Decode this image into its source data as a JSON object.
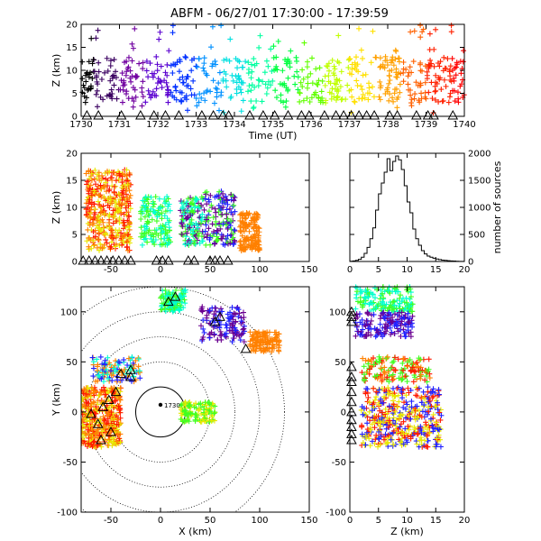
{
  "title": "ABFM - 06/27/01 17:30:00 - 17:39:59",
  "chart_data": [
    {
      "id": "time-height",
      "type": "scatter",
      "xlabel": "Time (UT)",
      "ylabel": "Z (km)",
      "xlim": [
        1730,
        1740
      ],
      "ylim": [
        0,
        20
      ],
      "xticks": [
        "1730",
        "1731",
        "1732",
        "1733",
        "1734",
        "1735",
        "1736",
        "1737",
        "1738",
        "1739",
        "1740"
      ],
      "yticks": [
        "0",
        "5",
        "10",
        "15",
        "20"
      ],
      "color_encoding": "time (rainbow: black to purple to blue to cyan to green to yellow to orange to red)",
      "source_band_z_km": [
        3,
        13
      ],
      "sparse_outliers_z_km": [
        14,
        20
      ],
      "triangle_station_times": [
        1730.15,
        1730.45,
        1731.05,
        1731.55,
        1731.9,
        1732.2,
        1732.55,
        1733.15,
        1733.45,
        1733.7,
        1733.85,
        1734.4,
        1734.75,
        1735.05,
        1735.4,
        1735.75,
        1735.95,
        1736.35,
        1736.65,
        1736.85,
        1737.05,
        1737.25,
        1737.45,
        1737.65,
        1738.05,
        1738.25,
        1738.75,
        1739.05,
        1739.2,
        1739.7
      ]
    },
    {
      "id": "x-z",
      "type": "scatter",
      "xlabel": "",
      "ylabel": "Z (km)",
      "xlim": [
        -80,
        150
      ],
      "ylim": [
        0,
        20
      ],
      "xticks": [
        "-50",
        "0",
        "50",
        "100",
        "150"
      ],
      "yticks": [
        "0",
        "5",
        "10",
        "15",
        "20"
      ],
      "clusters": [
        {
          "x_range": [
            -75,
            -30
          ],
          "z_range": [
            2,
            17
          ],
          "color": "red/orange/yellow"
        },
        {
          "x_range": [
            -20,
            10
          ],
          "z_range": [
            3,
            12
          ],
          "color": "green/cyan"
        },
        {
          "x_range": [
            20,
            45
          ],
          "z_range": [
            3,
            12
          ],
          "color": "cyan/green/purple"
        },
        {
          "x_range": [
            45,
            75
          ],
          "z_range": [
            3,
            13
          ],
          "color": "blue/purple/green"
        },
        {
          "x_range": [
            80,
            100
          ],
          "z_range": [
            2,
            9
          ],
          "color": "orange"
        }
      ]
    },
    {
      "id": "height-histogram",
      "type": "line",
      "xlabel": "",
      "ylabel": "number of sources",
      "xlim": [
        0,
        20
      ],
      "ylim": [
        0,
        2000
      ],
      "xticks": [
        "0",
        "5",
        "10",
        "15",
        "20"
      ],
      "yticks": [
        "0",
        "500",
        "1000",
        "1500",
        "2000"
      ],
      "bin_width_km": 0.5,
      "bins_start_km": [
        0,
        0.5,
        1,
        1.5,
        2,
        2.5,
        3,
        3.5,
        4,
        4.5,
        5,
        5.5,
        6,
        6.5,
        7,
        7.5,
        8,
        8.5,
        9,
        9.5,
        10,
        10.5,
        11,
        11.5,
        12,
        12.5,
        13,
        13.5,
        14,
        14.5,
        15,
        15.5,
        16,
        16.5,
        17,
        17.5,
        18,
        18.5,
        19,
        19.5
      ],
      "counts": [
        5,
        10,
        20,
        40,
        80,
        150,
        260,
        420,
        620,
        950,
        1250,
        1450,
        1650,
        1900,
        1680,
        1850,
        1950,
        1880,
        1700,
        1400,
        1100,
        900,
        600,
        420,
        300,
        200,
        140,
        100,
        80,
        60,
        45,
        35,
        25,
        20,
        15,
        10,
        8,
        5,
        3,
        2
      ]
    },
    {
      "id": "x-y-plan",
      "type": "scatter",
      "xlabel": "X (km)",
      "ylabel": "Y (km)",
      "xlim": [
        -80,
        150
      ],
      "ylim": [
        -100,
        125
      ],
      "xticks": [
        "-50",
        "0",
        "50",
        "100",
        "150"
      ],
      "yticks": [
        "-100",
        "-50",
        "0",
        "50",
        "100"
      ],
      "range_ring_radii_km": [
        25,
        50,
        75,
        100,
        125
      ],
      "center_label": "1730",
      "clusters": [
        {
          "x_range": [
            -80,
            -40
          ],
          "y_range": [
            -35,
            25
          ],
          "color": "red/orange/yellow"
        },
        {
          "x_range": [
            -70,
            -20
          ],
          "y_range": [
            30,
            55
          ],
          "color": "orange/blue/cyan"
        },
        {
          "x_range": [
            0,
            25
          ],
          "y_range": [
            100,
            122
          ],
          "color": "green/cyan"
        },
        {
          "x_range": [
            40,
            85
          ],
          "y_range": [
            70,
            105
          ],
          "color": "blue/purple"
        },
        {
          "x_range": [
            90,
            120
          ],
          "y_range": [
            60,
            80
          ],
          "color": "orange"
        },
        {
          "x_range": [
            20,
            55
          ],
          "y_range": [
            -10,
            10
          ],
          "color": "green/yellow"
        }
      ]
    },
    {
      "id": "z-y",
      "type": "scatter",
      "xlabel": "Z (km)",
      "ylabel": "",
      "xlim": [
        0,
        20
      ],
      "ylim": [
        -100,
        125
      ],
      "xticks": [
        "0",
        "5",
        "10",
        "15",
        "20"
      ],
      "yticks": [
        "-100",
        "-50",
        "0",
        "50",
        "100"
      ],
      "clusters": [
        {
          "z_range": [
            1,
            11
          ],
          "y_range": [
            100,
            125
          ],
          "color": "green/cyan"
        },
        {
          "z_range": [
            1,
            11
          ],
          "y_range": [
            75,
            100
          ],
          "color": "blue/purple"
        },
        {
          "z_range": [
            2,
            14
          ],
          "y_range": [
            30,
            55
          ],
          "color": "orange/red/green"
        },
        {
          "z_range": [
            2,
            16
          ],
          "y_range": [
            -35,
            25
          ],
          "color": "red/yellow/blue"
        }
      ]
    }
  ]
}
